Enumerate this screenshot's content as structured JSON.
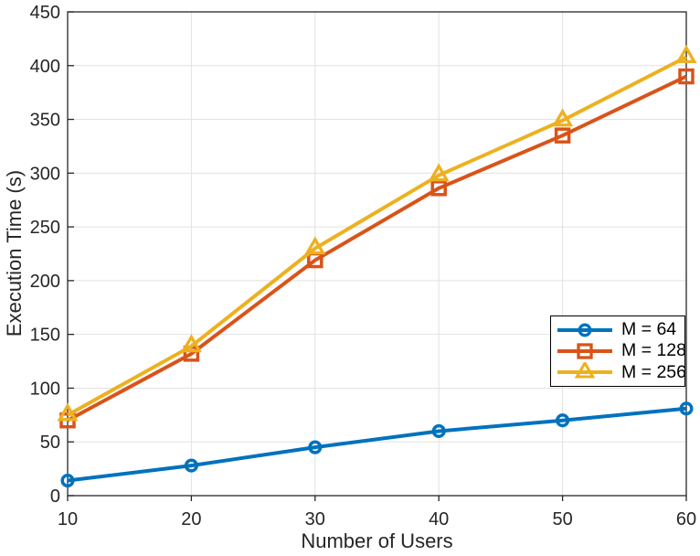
{
  "figure": {
    "background": "#ffffff",
    "axis_color": "#262626",
    "grid_color": "#e2e2e2",
    "tick_label_color": "#262626",
    "legend_border_color": "#000000"
  },
  "chart_data": {
    "type": "line",
    "title": "",
    "xlabel": "Number of Users",
    "ylabel": "Execution Time (s)",
    "x": [
      10,
      20,
      30,
      40,
      50,
      60
    ],
    "x_ticks": [
      10,
      20,
      30,
      40,
      50,
      60
    ],
    "y_ticks": [
      0,
      50,
      100,
      150,
      200,
      250,
      300,
      350,
      400,
      450
    ],
    "xlim": [
      10,
      60
    ],
    "ylim": [
      0,
      450
    ],
    "grid": true,
    "legend_position": "inside-middle-right",
    "series": [
      {
        "name": "M = 64",
        "marker": "circle",
        "color": "#0072BD",
        "values": [
          14,
          28,
          45,
          60,
          70,
          81
        ]
      },
      {
        "name": "M = 128",
        "marker": "square",
        "color": "#D95319",
        "values": [
          70,
          132,
          219,
          286,
          335,
          390
        ]
      },
      {
        "name": "M = 256",
        "marker": "triangle",
        "color": "#EDB120",
        "values": [
          75,
          139,
          230,
          298,
          349,
          408
        ]
      }
    ]
  }
}
